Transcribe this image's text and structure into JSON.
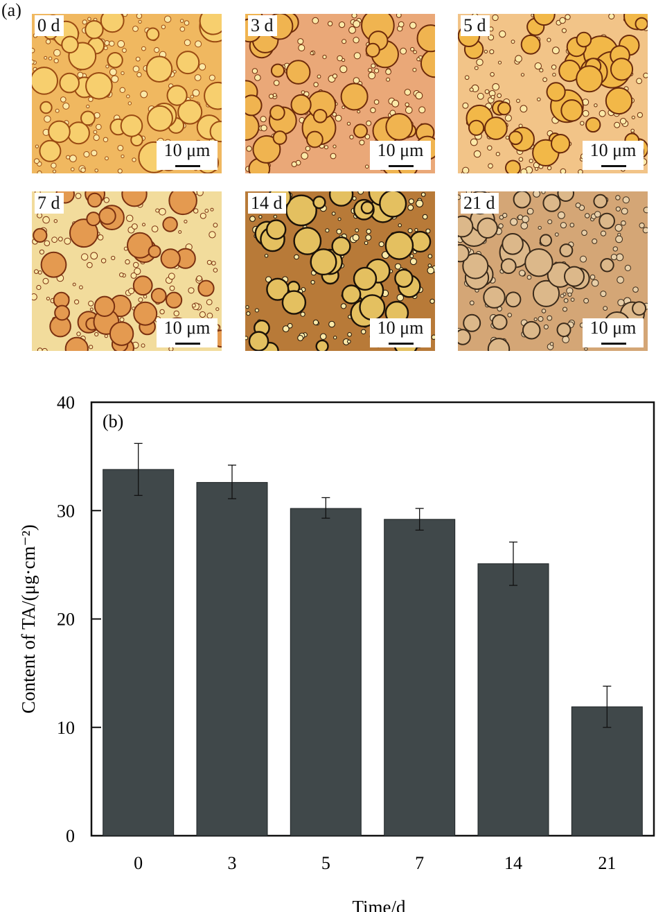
{
  "panel_a": {
    "label": "(a)",
    "scale_text": "10 μm",
    "images": [
      {
        "day": "0 d",
        "tint": "#f2b45a",
        "drop": "#f7cf6e",
        "edge": "#9a4a12",
        "bg": "#f0b860"
      },
      {
        "day": "3 d",
        "tint": "#e9a46a",
        "drop": "#f0b450",
        "edge": "#6d2a0a",
        "bg": "#eaa878"
      },
      {
        "day": "5 d",
        "tint": "#f0b878",
        "drop": "#f2b848",
        "edge": "#6a2a0c",
        "bg": "#f2c488"
      },
      {
        "day": "7 d",
        "tint": "#f0d090",
        "drop": "#e49a50",
        "edge": "#7a3010",
        "bg": "#f2dc9c"
      },
      {
        "day": "14 d",
        "tint": "#c8903c",
        "drop": "#e4c060",
        "edge": "#1c1208",
        "bg": "#b87a38"
      },
      {
        "day": "21 d",
        "tint": "#d6aa78",
        "drop": "#dcb88a",
        "edge": "#3a2a1a",
        "bg": "#d4a676"
      }
    ]
  },
  "chart_data": {
    "type": "bar",
    "panel_label": "(b)",
    "categories": [
      "0",
      "3",
      "5",
      "7",
      "14",
      "21"
    ],
    "values": [
      33.8,
      32.6,
      30.2,
      29.2,
      25.1,
      11.9
    ],
    "error_low": [
      31.4,
      31.1,
      29.3,
      28.2,
      23.1,
      10.0
    ],
    "error_high": [
      36.2,
      34.2,
      31.2,
      30.2,
      27.1,
      13.8
    ],
    "xlabel": "Time/d",
    "ylabel": "Content of TA/(μg·cm⁻²)",
    "ylim": [
      0,
      40
    ],
    "yticks": [
      "0",
      "10",
      "20",
      "30",
      "40"
    ],
    "bar_color": "#40484a",
    "grid": false
  }
}
